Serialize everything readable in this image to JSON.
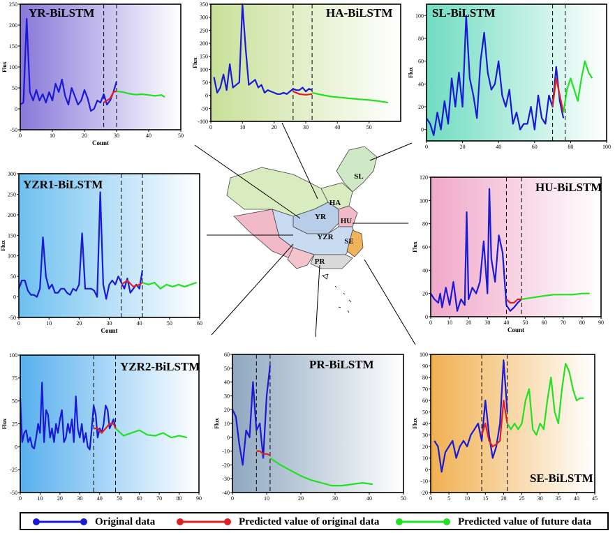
{
  "colors": {
    "original": "#1a1ad6",
    "predicted_original": "#e02020",
    "predicted_future": "#22e022"
  },
  "legend": {
    "original": "Original data",
    "predicted_original": "Predicted value of original data",
    "predicted_future": "Predicted value of future data"
  },
  "map_labels": [
    "SL",
    "HA",
    "YR",
    "HU",
    "YZR",
    "SE",
    "PR"
  ],
  "chart_data": [
    {
      "id": "yr",
      "type": "line",
      "title": "YR-BiLSTM",
      "xlabel": "Count",
      "ylabel": "Flux",
      "xlim": [
        0,
        50
      ],
      "ylim": [
        -50,
        250
      ],
      "xticks": [
        0,
        10,
        20,
        30,
        40,
        50
      ],
      "yticks": [
        -50,
        0,
        50,
        100,
        150,
        200,
        250
      ],
      "vlines": [
        26,
        30
      ],
      "series": [
        {
          "role": "original",
          "x": [
            0,
            1,
            2,
            3,
            4,
            5,
            6,
            7,
            8,
            9,
            10,
            11,
            12,
            13,
            14,
            15,
            16,
            17,
            18,
            19,
            20,
            21,
            22,
            23,
            24,
            25,
            26,
            27,
            28,
            29,
            30
          ],
          "y": [
            10,
            15,
            215,
            40,
            20,
            45,
            20,
            35,
            15,
            40,
            20,
            60,
            40,
            70,
            30,
            10,
            50,
            30,
            10,
            20,
            45,
            25,
            -5,
            0,
            20,
            15,
            35,
            10,
            20,
            40,
            65
          ]
        },
        {
          "role": "predicted_original",
          "x": [
            26,
            27,
            28,
            29,
            30
          ],
          "y": [
            15,
            20,
            25,
            40,
            42
          ]
        },
        {
          "role": "predicted_future",
          "x": [
            30,
            32,
            34,
            36,
            38,
            40,
            42,
            44,
            45
          ],
          "y": [
            42,
            40,
            36,
            34,
            35,
            33,
            31,
            33,
            28
          ]
        }
      ]
    },
    {
      "id": "ha",
      "type": "line",
      "title": "HA-BiLSTM",
      "xlabel": "",
      "ylabel": "Flux",
      "xlim": [
        0,
        60
      ],
      "ylim": [
        -100,
        350
      ],
      "xticks": [
        0,
        10,
        20,
        30,
        40,
        50
      ],
      "yticks": [
        -100,
        -50,
        0,
        50,
        100,
        150,
        200,
        250,
        300,
        350
      ],
      "vlines": [
        26,
        32
      ],
      "series": [
        {
          "role": "original",
          "x": [
            1,
            2,
            3,
            4,
            5,
            6,
            7,
            8,
            9,
            10,
            11,
            12,
            13,
            14,
            15,
            16,
            17,
            18,
            19,
            20,
            21,
            22,
            23,
            24,
            25,
            26,
            27,
            28,
            29,
            30,
            31,
            32
          ],
          "y": [
            70,
            10,
            30,
            80,
            20,
            120,
            30,
            40,
            50,
            350,
            180,
            40,
            50,
            60,
            30,
            40,
            10,
            20,
            15,
            10,
            5,
            5,
            10,
            5,
            15,
            25,
            20,
            20,
            30,
            15,
            25,
            20
          ]
        },
        {
          "role": "predicted_original",
          "x": [
            26,
            28,
            30,
            32
          ],
          "y": [
            15,
            5,
            2,
            5
          ]
        },
        {
          "role": "predicted_future",
          "x": [
            32,
            35,
            38,
            41,
            44,
            47,
            50,
            53,
            56
          ],
          "y": [
            10,
            2,
            -5,
            -8,
            -12,
            -15,
            -18,
            -22,
            -28
          ]
        }
      ]
    },
    {
      "id": "sl",
      "type": "line",
      "title": "SL-BiLSTM",
      "xlabel": "",
      "ylabel": "Flux",
      "xlim": [
        0,
        100
      ],
      "ylim": [
        -10,
        110
      ],
      "xticks": [
        0,
        20,
        40,
        60,
        80,
        100
      ],
      "yticks": [
        0,
        20,
        40,
        60,
        80,
        100
      ],
      "vlines": [
        70,
        77
      ],
      "series": [
        {
          "role": "original",
          "x": [
            0,
            2,
            4,
            6,
            8,
            10,
            12,
            14,
            16,
            18,
            20,
            22,
            24,
            26,
            28,
            30,
            32,
            34,
            36,
            38,
            40,
            42,
            44,
            46,
            48,
            50,
            52,
            54,
            56,
            58,
            60,
            62,
            64,
            66,
            68,
            70,
            72,
            74,
            76
          ],
          "y": [
            10,
            5,
            -5,
            15,
            0,
            25,
            5,
            45,
            20,
            50,
            20,
            100,
            45,
            30,
            10,
            60,
            85,
            50,
            35,
            40,
            60,
            30,
            20,
            35,
            5,
            15,
            0,
            5,
            5,
            20,
            0,
            30,
            10,
            5,
            30,
            20,
            55,
            25,
            10
          ]
        },
        {
          "role": "predicted_original",
          "x": [
            70,
            72,
            74,
            76
          ],
          "y": [
            20,
            45,
            30,
            15
          ]
        },
        {
          "role": "predicted_future",
          "x": [
            76,
            78,
            80,
            82,
            84,
            86,
            88,
            90,
            92
          ],
          "y": [
            15,
            35,
            45,
            35,
            25,
            45,
            60,
            50,
            45
          ]
        }
      ]
    },
    {
      "id": "yzr1",
      "type": "line",
      "title": "YZR1-BiLSTM",
      "xlabel": "Count",
      "ylabel": "Flux",
      "xlim": [
        0,
        60
      ],
      "ylim": [
        -50,
        300
      ],
      "xticks": [
        0,
        10,
        20,
        30,
        40,
        50,
        60
      ],
      "yticks": [
        -50,
        0,
        50,
        100,
        150,
        200,
        250,
        300
      ],
      "vlines": [
        34,
        41
      ],
      "series": [
        {
          "role": "original",
          "x": [
            0,
            1,
            2,
            3,
            4,
            5,
            6,
            7,
            8,
            9,
            10,
            11,
            12,
            13,
            14,
            15,
            16,
            17,
            18,
            19,
            20,
            21,
            22,
            23,
            24,
            25,
            26,
            27,
            28,
            29,
            30,
            31,
            32,
            33,
            34,
            35,
            36,
            37,
            38,
            39,
            40,
            41
          ],
          "y": [
            20,
            40,
            40,
            15,
            5,
            5,
            0,
            20,
            145,
            50,
            20,
            30,
            10,
            10,
            20,
            20,
            10,
            5,
            20,
            15,
            30,
            155,
            20,
            20,
            20,
            15,
            0,
            255,
            30,
            -5,
            30,
            40,
            30,
            50,
            35,
            20,
            45,
            10,
            20,
            30,
            20,
            65
          ]
        },
        {
          "role": "predicted_original",
          "x": [
            34,
            36,
            38,
            40,
            41
          ],
          "y": [
            30,
            40,
            25,
            30,
            35
          ]
        },
        {
          "role": "predicted_future",
          "x": [
            41,
            43,
            45,
            47,
            49,
            51,
            53,
            55,
            57,
            59
          ],
          "y": [
            35,
            30,
            35,
            20,
            30,
            25,
            30,
            25,
            30,
            35
          ]
        }
      ]
    },
    {
      "id": "hu",
      "type": "line",
      "title": "HU-BiLSTM",
      "xlabel": "Count",
      "ylabel": "Flux",
      "xlim": [
        0,
        90
      ],
      "ylim": [
        0,
        120
      ],
      "xticks": [
        0,
        10,
        20,
        30,
        40,
        50,
        60,
        70,
        80,
        90
      ],
      "yticks": [
        0,
        20,
        40,
        60,
        80,
        100,
        120
      ],
      "vlines": [
        40,
        48
      ],
      "series": [
        {
          "role": "original",
          "x": [
            0,
            2,
            4,
            5,
            6,
            8,
            10,
            12,
            14,
            16,
            18,
            19,
            20,
            22,
            24,
            26,
            28,
            30,
            31,
            32,
            34,
            36,
            38,
            40,
            42,
            44,
            46,
            48
          ],
          "y": [
            20,
            15,
            12,
            20,
            8,
            25,
            10,
            30,
            5,
            15,
            10,
            90,
            15,
            25,
            20,
            30,
            65,
            20,
            110,
            50,
            30,
            70,
            55,
            10,
            5,
            8,
            12,
            15
          ]
        },
        {
          "role": "predicted_original",
          "x": [
            40,
            42,
            44,
            46,
            48
          ],
          "y": [
            15,
            12,
            12,
            15,
            15
          ]
        },
        {
          "role": "predicted_future",
          "x": [
            48,
            52,
            56,
            60,
            65,
            70,
            75,
            80,
            84
          ],
          "y": [
            15,
            16,
            17,
            18,
            19,
            19,
            19,
            20,
            20
          ]
        }
      ]
    },
    {
      "id": "yzr2",
      "type": "line",
      "title": "YZR2-BiLSTM",
      "xlabel": "",
      "ylabel": "Flux",
      "xlim": [
        0,
        90
      ],
      "ylim": [
        -50,
        100
      ],
      "xticks": [
        0,
        10,
        20,
        30,
        40,
        50,
        60,
        70,
        80,
        90
      ],
      "yticks": [
        -50,
        -25,
        0,
        25,
        50,
        75,
        100
      ],
      "vlines": [
        37,
        48
      ],
      "series": [
        {
          "role": "original",
          "x": [
            0,
            1,
            2,
            3,
            4,
            5,
            6,
            7,
            8,
            9,
            10,
            11,
            12,
            13,
            14,
            15,
            16,
            17,
            18,
            19,
            20,
            21,
            22,
            23,
            24,
            25,
            26,
            27,
            28,
            29,
            30,
            31,
            32,
            33,
            34,
            35,
            36,
            37,
            38,
            39,
            40,
            41,
            42,
            43,
            44,
            45,
            46,
            47,
            48
          ],
          "y": [
            53,
            5,
            15,
            18,
            5,
            10,
            0,
            -2,
            10,
            25,
            15,
            70,
            5,
            40,
            35,
            10,
            20,
            5,
            25,
            15,
            30,
            40,
            5,
            10,
            25,
            15,
            30,
            5,
            55,
            20,
            10,
            25,
            5,
            15,
            0,
            -3,
            20,
            45,
            35,
            10,
            20,
            15,
            25,
            45,
            40,
            20,
            25,
            30,
            20
          ]
        },
        {
          "role": "predicted_original",
          "x": [
            37,
            39,
            41,
            43,
            45,
            47,
            48
          ],
          "y": [
            20,
            20,
            15,
            20,
            25,
            25,
            20
          ]
        },
        {
          "role": "predicted_future",
          "x": [
            48,
            52,
            56,
            60,
            64,
            68,
            72,
            76,
            80,
            84
          ],
          "y": [
            20,
            12,
            15,
            18,
            13,
            12,
            15,
            10,
            12,
            10
          ]
        }
      ]
    },
    {
      "id": "pr",
      "type": "line",
      "title": "PR-BiLSTM",
      "xlabel": "",
      "ylabel": "Flux",
      "xlim": [
        0,
        50
      ],
      "ylim": [
        -40,
        60
      ],
      "xticks": [
        0,
        10,
        20,
        30,
        40,
        50
      ],
      "yticks": [
        -40,
        -30,
        -20,
        -10,
        0,
        10,
        20,
        30,
        40,
        50,
        60
      ],
      "vlines": [
        7,
        11
      ],
      "series": [
        {
          "role": "original",
          "x": [
            0,
            1,
            2,
            3,
            4,
            5,
            6,
            7,
            8,
            9,
            10,
            11
          ],
          "y": [
            20,
            15,
            -5,
            -20,
            5,
            0,
            40,
            5,
            10,
            -15,
            30,
            52
          ]
        },
        {
          "role": "predicted_original",
          "x": [
            7,
            8,
            9,
            10,
            11
          ],
          "y": [
            -10,
            -10,
            -12,
            -12,
            -13
          ]
        },
        {
          "role": "predicted_future",
          "x": [
            11,
            14,
            17,
            20,
            23,
            26,
            29,
            32,
            35,
            38,
            41
          ],
          "y": [
            -15,
            -20,
            -24,
            -28,
            -31,
            -33,
            -35,
            -35,
            -34,
            -33,
            -34
          ]
        }
      ]
    },
    {
      "id": "se",
      "type": "line",
      "title": "SE-BiLSTM",
      "xlabel": "",
      "ylabel": "Flux",
      "xlim": [
        0,
        45
      ],
      "ylim": [
        -20,
        100
      ],
      "xticks": [
        0,
        5,
        10,
        15,
        20,
        25,
        30,
        35,
        40,
        45
      ],
      "yticks": [
        -20,
        -10,
        0,
        10,
        20,
        30,
        40,
        50,
        60,
        70,
        80,
        90,
        100
      ],
      "vlines": [
        14,
        21
      ],
      "series": [
        {
          "role": "original",
          "x": [
            1,
            2,
            3,
            4,
            5,
            6,
            7,
            8,
            9,
            10,
            11,
            12,
            13,
            14,
            15,
            16,
            17,
            18,
            19,
            20,
            21
          ],
          "y": [
            25,
            20,
            -2,
            15,
            20,
            25,
            10,
            20,
            25,
            20,
            30,
            35,
            40,
            25,
            60,
            30,
            10,
            20,
            40,
            95,
            50
          ]
        },
        {
          "role": "predicted_original",
          "x": [
            14,
            15,
            16,
            17,
            18,
            19,
            20,
            21
          ],
          "y": [
            30,
            40,
            25,
            20,
            22,
            25,
            60,
            40
          ]
        },
        {
          "role": "predicted_future",
          "x": [
            21,
            22,
            23,
            24,
            25,
            26,
            27,
            28,
            29,
            30,
            31,
            32,
            33,
            34,
            35,
            36,
            37,
            38,
            39,
            40,
            41,
            42
          ],
          "y": [
            40,
            35,
            40,
            35,
            40,
            60,
            70,
            35,
            30,
            40,
            35,
            60,
            80,
            50,
            40,
            70,
            92,
            85,
            70,
            60,
            62,
            62
          ]
        }
      ]
    }
  ]
}
